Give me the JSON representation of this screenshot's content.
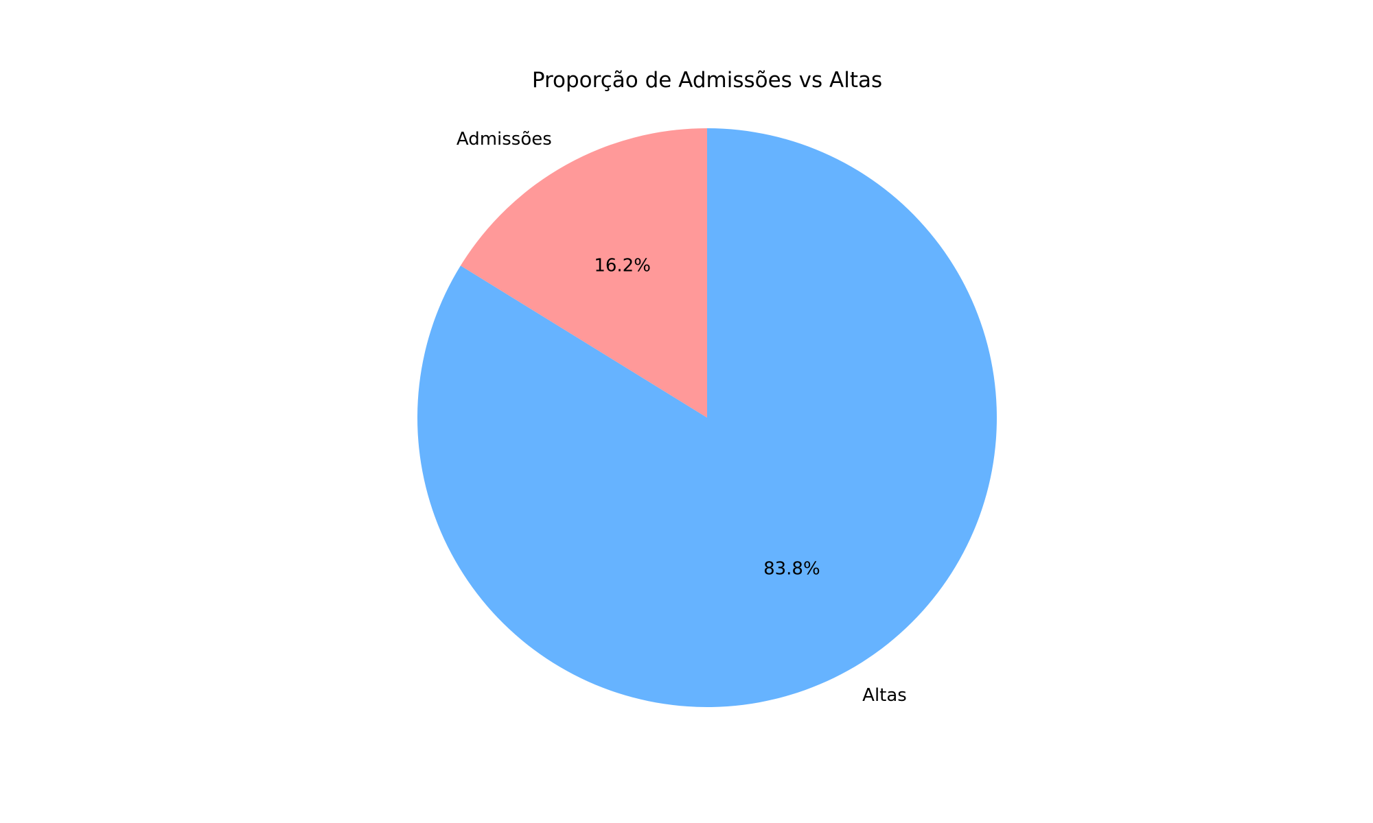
{
  "chart_data": {
    "type": "pie",
    "title": "Proporção de Admissões vs Altas",
    "start_angle_deg": 90,
    "direction": "counterclockwise",
    "slices": [
      {
        "label": "Admissões",
        "value": 16.2,
        "pct_label": "16.2%",
        "color": "#ff9999"
      },
      {
        "label": "Altas",
        "value": 83.8,
        "pct_label": "83.8%",
        "color": "#66b3ff"
      }
    ],
    "legend": "none"
  }
}
